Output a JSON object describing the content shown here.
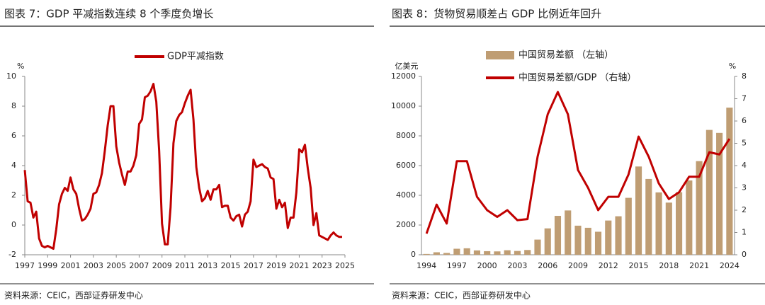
{
  "chart_data": [
    {
      "type": "line",
      "title": "图表 7：GDP 平减指数连续 8 个季度负增长",
      "y_unit": "%",
      "source": "资料来源：CEIC，西部证券研发中心",
      "x": [
        1997,
        1997.25,
        1997.5,
        1997.75,
        1998,
        1998.25,
        1998.5,
        1998.75,
        1999,
        1999.25,
        1999.5,
        1999.75,
        2000,
        2000.25,
        2000.5,
        2000.75,
        2001,
        2001.25,
        2001.5,
        2001.75,
        2002,
        2002.25,
        2002.5,
        2002.75,
        2003,
        2003.25,
        2003.5,
        2003.75,
        2004,
        2004.25,
        2004.5,
        2004.75,
        2005,
        2005.25,
        2005.5,
        2005.75,
        2006,
        2006.25,
        2006.5,
        2006.75,
        2007,
        2007.25,
        2007.5,
        2007.75,
        2008,
        2008.25,
        2008.5,
        2008.75,
        2009,
        2009.25,
        2009.5,
        2009.75,
        2010,
        2010.25,
        2010.5,
        2010.75,
        2011,
        2011.25,
        2011.5,
        2011.75,
        2012,
        2012.25,
        2012.5,
        2012.75,
        2013,
        2013.25,
        2013.5,
        2013.75,
        2014,
        2014.25,
        2014.5,
        2014.75,
        2015,
        2015.25,
        2015.5,
        2015.75,
        2016,
        2016.25,
        2016.5,
        2016.75,
        2017,
        2017.25,
        2017.5,
        2017.75,
        2018,
        2018.25,
        2018.5,
        2018.75,
        2019,
        2019.25,
        2019.5,
        2019.75,
        2020,
        2020.25,
        2020.5,
        2020.75,
        2021,
        2021.25,
        2021.5,
        2021.75,
        2022,
        2022.25,
        2022.5,
        2022.75,
        2023,
        2023.25,
        2023.5,
        2023.75,
        2024,
        2024.25,
        2024.5,
        2024.75
      ],
      "series": [
        {
          "name": "GDP平减指数",
          "color": "#c00000",
          "values": [
            3.7,
            1.6,
            1.5,
            0.5,
            0.9,
            -0.9,
            -1.4,
            -1.5,
            -1.4,
            -1.5,
            -1.6,
            -0.3,
            1.4,
            2.1,
            2.5,
            2.3,
            3.2,
            2.4,
            2.1,
            1.1,
            0.3,
            0.4,
            0.7,
            1.1,
            2.1,
            2.2,
            2.7,
            3.5,
            5.0,
            6.7,
            8.0,
            8.0,
            5.3,
            4.2,
            3.4,
            2.7,
            3.6,
            3.6,
            4.0,
            4.7,
            6.8,
            7.1,
            8.6,
            8.7,
            9.0,
            9.5,
            8.3,
            5.0,
            0.1,
            -1.3,
            -1.3,
            1.2,
            5.5,
            7.0,
            7.4,
            7.6,
            8.2,
            8.7,
            9.1,
            7.1,
            3.9,
            2.5,
            1.6,
            1.8,
            2.3,
            1.7,
            2.4,
            2.4,
            2.7,
            1.2,
            1.3,
            1.3,
            0.5,
            0.3,
            0.6,
            0.7,
            -0.1,
            0.7,
            0.9,
            1.6,
            4.4,
            3.9,
            4.0,
            4.1,
            3.9,
            3.8,
            3.2,
            3.1,
            1.1,
            1.7,
            1.2,
            1.5,
            -0.2,
            0.5,
            0.5,
            2.2,
            5.1,
            4.9,
            5.4,
            3.8,
            2.5,
            0.0,
            0.8,
            -0.7,
            -0.8,
            -0.9,
            -1.0,
            -0.7,
            -0.5,
            -0.7,
            -0.8,
            -0.8
          ]
        }
      ],
      "xlim": [
        1997,
        2025
      ],
      "xticks": [
        1997,
        1999,
        2001,
        2003,
        2005,
        2007,
        2009,
        2011,
        2013,
        2015,
        2017,
        2019,
        2021,
        2023,
        2025
      ],
      "ylim": [
        -2,
        10
      ],
      "yticks": [
        -2,
        0,
        2,
        4,
        6,
        8,
        10
      ]
    },
    {
      "type": "combo",
      "title": "图表 8：货物贸易顺差占 GDP 比例近年回升",
      "y_unit": "亿美元",
      "y2_unit": "%",
      "source": "资料来源：CEIC，西部证券研发中心",
      "categories": [
        "1994",
        null,
        null,
        "1997",
        null,
        null,
        "2000",
        null,
        null,
        "2003",
        null,
        null,
        "2006",
        null,
        null,
        "2009",
        null,
        null,
        "2012",
        null,
        null,
        "2015",
        null,
        null,
        "2018",
        null,
        null,
        "2021",
        null,
        null,
        "2024"
      ],
      "series": [
        {
          "name": "中国贸易差额 （左轴）",
          "type": "bar",
          "color": "#bf9d73",
          "values": [
            54,
            167,
            122,
            404,
            435,
            292,
            241,
            226,
            304,
            255,
            321,
            1020,
            1775,
            2618,
            2981,
            1957,
            1815,
            1549,
            2303,
            2590,
            3831,
            5939,
            5100,
            4196,
            3509,
            4211,
            5000,
            6300,
            8400,
            8200,
            9900
          ]
        },
        {
          "name": "中国贸易差额/GDP （右轴）",
          "type": "line",
          "axis": "y2",
          "color": "#c00000",
          "values": [
            0.95,
            2.25,
            1.4,
            4.2,
            4.2,
            2.6,
            2.0,
            1.7,
            2.0,
            1.55,
            1.6,
            4.4,
            6.3,
            7.3,
            6.3,
            3.8,
            3.0,
            2.0,
            2.6,
            2.6,
            3.6,
            5.3,
            4.4,
            3.2,
            2.5,
            2.8,
            3.5,
            3.5,
            4.6,
            4.5,
            5.2
          ]
        }
      ],
      "ylim": [
        0,
        12000
      ],
      "yticks": [
        0,
        2000,
        4000,
        6000,
        8000,
        10000,
        12000
      ],
      "y2lim": [
        0,
        8
      ],
      "y2ticks": [
        0,
        1,
        2,
        3,
        4,
        5,
        6,
        7,
        8
      ]
    }
  ]
}
